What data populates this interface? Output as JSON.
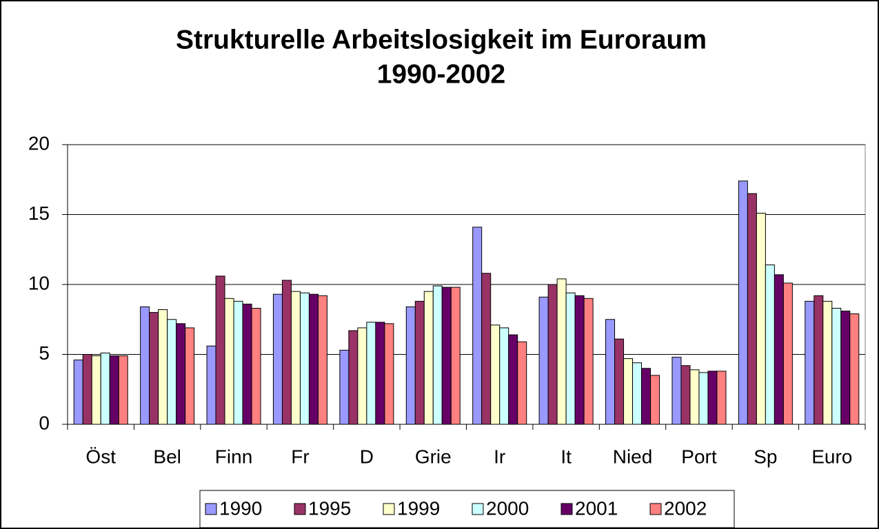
{
  "chart_data": {
    "type": "bar",
    "title": [
      "Strukturelle Arbeitslosigkeit im Euroraum",
      "1990-2002"
    ],
    "categories": [
      "Öst",
      "Bel",
      "Finn",
      "Fr",
      "D",
      "Grie",
      "Ir",
      "It",
      "Nied",
      "Port",
      "Sp",
      "Euro"
    ],
    "series": [
      {
        "name": "1990",
        "color": "#9999ff",
        "values": [
          4.6,
          8.4,
          5.6,
          9.3,
          5.3,
          8.4,
          14.1,
          9.1,
          7.5,
          4.8,
          17.4,
          8.8
        ]
      },
      {
        "name": "1995",
        "color": "#993366",
        "values": [
          5.0,
          8.0,
          10.6,
          10.3,
          6.7,
          8.8,
          10.8,
          10.0,
          6.1,
          4.2,
          16.5,
          9.2
        ]
      },
      {
        "name": "1999",
        "color": "#ffffcc",
        "values": [
          4.9,
          8.2,
          9.0,
          9.5,
          6.9,
          9.5,
          7.1,
          10.4,
          4.7,
          3.9,
          15.1,
          8.8
        ]
      },
      {
        "name": "2000",
        "color": "#ccffff",
        "values": [
          5.1,
          7.5,
          8.8,
          9.4,
          7.3,
          9.9,
          6.9,
          9.4,
          4.4,
          3.7,
          11.4,
          8.3
        ]
      },
      {
        "name": "2001",
        "color": "#660066",
        "values": [
          4.9,
          7.2,
          8.6,
          9.3,
          7.3,
          9.8,
          6.4,
          9.2,
          4.0,
          3.8,
          10.7,
          8.1
        ]
      },
      {
        "name": "2002",
        "color": "#ff8080",
        "values": [
          4.9,
          6.9,
          8.3,
          9.2,
          7.2,
          9.8,
          5.9,
          9.0,
          3.5,
          3.8,
          10.1,
          7.9
        ]
      }
    ],
    "ylim": [
      0,
      20
    ],
    "yticks": [
      0,
      5,
      10,
      15,
      20
    ],
    "grid": true,
    "legend": "bottom"
  }
}
